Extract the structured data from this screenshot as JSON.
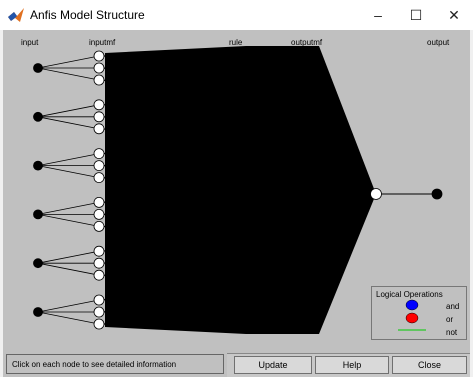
{
  "window": {
    "title": "Anfis Model Structure",
    "minimize_glyph": "–",
    "maximize_glyph": "☐",
    "close_glyph": "✕",
    "icon": "matlab-icon"
  },
  "network": {
    "column_labels": {
      "input": "input",
      "inputmf": "inputmf",
      "rule": "rule",
      "outputmf": "outputmf",
      "output": "output"
    },
    "num_inputs": 6,
    "mfs_per_input": 3,
    "num_outputs": 1,
    "colors": {
      "background": "#c0c0c0",
      "node_filled": "#000000",
      "node_open": "#ffffff",
      "edge": "#000000"
    }
  },
  "legend": {
    "title": "Logical Operations",
    "items": [
      {
        "label": "and",
        "color": "#0000ff",
        "shape": "circle"
      },
      {
        "label": "or",
        "color": "#ff0000",
        "shape": "circle"
      },
      {
        "label": "not",
        "color": "#00cc00",
        "shape": "line"
      }
    ]
  },
  "status": {
    "text": "Click on each node to see detailed information"
  },
  "buttons": {
    "update": "Update",
    "help": "Help",
    "close": "Close"
  }
}
